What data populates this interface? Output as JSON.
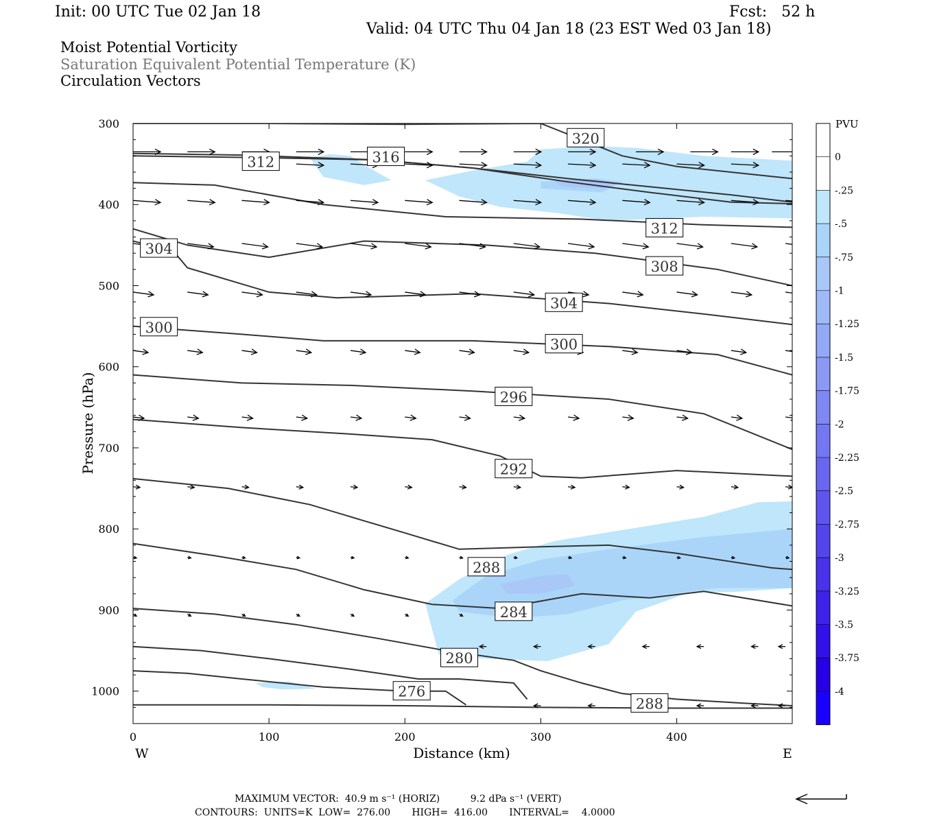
{
  "header": {
    "init": "Init: 00 UTC Tue 02 Jan 18",
    "fcst": "Fcst:   52 h",
    "valid": "Valid: 04 UTC Thu 04 Jan 18 (23 EST Wed 03 Jan 18)"
  },
  "legend_lines": {
    "line1": "Moist Potential Vorticity",
    "line2": "Saturation Equivalent Potential Temperature (K)",
    "line3": "Circulation Vectors"
  },
  "footer": {
    "max_vector": "MAXIMUM VECTOR:  40.9 m s⁻¹ (HORIZ)          9.2 dPa s⁻¹ (VERT)",
    "contours": "CONTOURS:  UNITS=K  LOW=  276.00       HIGH=  416.00       INTERVAL=    4.0000"
  },
  "colors": {
    "pv_light": "#bfe6fb",
    "pv_mid": "#a9c8f8",
    "pv_dark": "#93a9f5",
    "contour": "#333333"
  },
  "chart_data": {
    "type": "cross-section",
    "xlabel": "Distance (km)",
    "ylabel": "Pressure (hPa)",
    "xlim": [
      0,
      485
    ],
    "ylim": [
      1040,
      300
    ],
    "xticks": [
      0,
      100,
      200,
      300,
      400
    ],
    "yticks": [
      300,
      400,
      500,
      600,
      700,
      800,
      900,
      1000
    ],
    "x_endpoint_labels": [
      "W",
      "E"
    ],
    "colorbar": {
      "units": "PVU",
      "labels": [
        "0",
        "-.25",
        "-.5",
        "-.75",
        "-1",
        "-1.25",
        "-1.5",
        "-1.75",
        "-2",
        "-2.25",
        "-2.5",
        "-2.75",
        "-3",
        "-3.25",
        "-3.5",
        "-3.75",
        "-4"
      ],
      "colors": [
        "#ffffff",
        "#ffffff",
        "#bfe6fb",
        "#aad5f9",
        "#a9c8f8",
        "#9fbaf7",
        "#93a9f5",
        "#8a99f4",
        "#7f88f2",
        "#7477f1",
        "#6966ef",
        "#5e55ee",
        "#5344ec",
        "#4833eb",
        "#3d22e9",
        "#3211e8",
        "#2700e6",
        "#1a00ff"
      ]
    },
    "contours": [
      {
        "label": "320",
        "points": [
          [
            0,
            300
          ],
          [
            100,
            300
          ],
          [
            200,
            301
          ],
          [
            300,
            300
          ],
          [
            330,
            320
          ],
          [
            360,
            340
          ],
          [
            400,
            353
          ],
          [
            485,
            368
          ]
        ]
      },
      {
        "label": "316",
        "points": [
          [
            0,
            340
          ],
          [
            90,
            342
          ],
          [
            180,
            345
          ],
          [
            250,
            355
          ],
          [
            320,
            368
          ],
          [
            380,
            378
          ],
          [
            440,
            388
          ],
          [
            485,
            397
          ]
        ]
      },
      {
        "label": "312",
        "points": [
          [
            0,
            337
          ],
          [
            80,
            339
          ],
          [
            180,
            345
          ],
          [
            250,
            355
          ],
          [
            320,
            372
          ],
          [
            380,
            385
          ],
          [
            440,
            397
          ],
          [
            485,
            399
          ]
        ]
      },
      {
        "label": "312",
        "points": [
          [
            0,
            373
          ],
          [
            60,
            376
          ],
          [
            140,
            400
          ],
          [
            230,
            415
          ],
          [
            330,
            418
          ],
          [
            420,
            425
          ],
          [
            485,
            428
          ]
        ]
      },
      {
        "label": "308",
        "points": [
          [
            0,
            430
          ],
          [
            40,
            450
          ],
          [
            100,
            465
          ],
          [
            170,
            445
          ],
          [
            260,
            450
          ],
          [
            340,
            460
          ],
          [
            430,
            480
          ],
          [
            485,
            500
          ]
        ]
      },
      {
        "label": "304",
        "points": [
          [
            0,
            445
          ],
          [
            30,
            458
          ],
          [
            40,
            478
          ],
          [
            100,
            508
          ],
          [
            150,
            515
          ],
          [
            250,
            510
          ],
          [
            350,
            522
          ],
          [
            420,
            535
          ],
          [
            485,
            548
          ]
        ]
      },
      {
        "label": "300",
        "points": [
          [
            0,
            550
          ],
          [
            80,
            560
          ],
          [
            140,
            568
          ],
          [
            250,
            568
          ],
          [
            350,
            575
          ],
          [
            430,
            585
          ],
          [
            485,
            610
          ]
        ]
      },
      {
        "label": "296",
        "points": [
          [
            0,
            610
          ],
          [
            80,
            620
          ],
          [
            160,
            623
          ],
          [
            250,
            630
          ],
          [
            350,
            640
          ],
          [
            420,
            658
          ],
          [
            485,
            702
          ]
        ]
      },
      {
        "label": "292",
        "points": [
          [
            0,
            665
          ],
          [
            80,
            675
          ],
          [
            160,
            683
          ],
          [
            220,
            690
          ],
          [
            270,
            710
          ],
          [
            300,
            735
          ],
          [
            330,
            737
          ],
          [
            400,
            728
          ],
          [
            485,
            735
          ]
        ]
      },
      {
        "label": "288",
        "points": [
          [
            0,
            738
          ],
          [
            70,
            750
          ],
          [
            130,
            770
          ],
          [
            170,
            790
          ],
          [
            200,
            805
          ],
          [
            240,
            825
          ],
          [
            300,
            822
          ],
          [
            350,
            820
          ],
          [
            400,
            830
          ],
          [
            470,
            848
          ],
          [
            485,
            850
          ]
        ]
      },
      {
        "label": "288",
        "points": [
          [
            0,
            818
          ],
          [
            60,
            833
          ],
          [
            120,
            850
          ],
          [
            170,
            875
          ],
          [
            220,
            893
          ],
          [
            270,
            898
          ],
          [
            330,
            880
          ],
          [
            380,
            885
          ],
          [
            420,
            877
          ],
          [
            485,
            895
          ]
        ]
      },
      {
        "label": "284",
        "points": [
          [
            0,
            898
          ],
          [
            60,
            905
          ],
          [
            120,
            918
          ],
          [
            180,
            935
          ],
          [
            230,
            950
          ],
          [
            280,
            962
          ],
          [
            300,
            975
          ],
          [
            330,
            990
          ],
          [
            360,
            1003
          ],
          [
            400,
            1010
          ],
          [
            450,
            1015
          ],
          [
            485,
            1018
          ]
        ]
      },
      {
        "label": "280",
        "points": [
          [
            0,
            945
          ],
          [
            50,
            950
          ],
          [
            100,
            960
          ],
          [
            160,
            973
          ],
          [
            210,
            985
          ],
          [
            240,
            985
          ],
          [
            280,
            990
          ],
          [
            290,
            1010
          ]
        ]
      },
      {
        "label": "276",
        "points": [
          [
            0,
            975
          ],
          [
            40,
            978
          ],
          [
            80,
            985
          ],
          [
            140,
            995
          ],
          [
            200,
            1000
          ],
          [
            230,
            1000
          ],
          [
            245,
            1017
          ]
        ]
      },
      {
        "label": "288",
        "points": [
          [
            0,
            1017
          ],
          [
            100,
            1017
          ],
          [
            200,
            1018
          ],
          [
            300,
            1020
          ],
          [
            400,
            1021
          ],
          [
            485,
            1021
          ]
        ]
      }
    ],
    "contour_labels": [
      {
        "text": "320",
        "x": 333,
        "p": 318
      },
      {
        "text": "316",
        "x": 186,
        "p": 341
      },
      {
        "text": "312",
        "x": 94,
        "p": 347
      },
      {
        "text": "312",
        "x": 391,
        "p": 429
      },
      {
        "text": "308",
        "x": 391,
        "p": 476
      },
      {
        "text": "304",
        "x": 19,
        "p": 454
      },
      {
        "text": "304",
        "x": 317,
        "p": 521
      },
      {
        "text": "300",
        "x": 19,
        "p": 551
      },
      {
        "text": "300",
        "x": 317,
        "p": 572
      },
      {
        "text": "296",
        "x": 280,
        "p": 637
      },
      {
        "text": "292",
        "x": 280,
        "p": 726
      },
      {
        "text": "288",
        "x": 260,
        "p": 847
      },
      {
        "text": "284",
        "x": 280,
        "p": 902
      },
      {
        "text": "280",
        "x": 240,
        "p": 959
      },
      {
        "text": "276",
        "x": 205,
        "p": 1000
      },
      {
        "text": "288",
        "x": 380,
        "p": 1015
      }
    ],
    "pv_regions": [
      {
        "level": "-.25",
        "points": [
          [
            130,
            342
          ],
          [
            145,
            338
          ],
          [
            160,
            340
          ],
          [
            175,
            356
          ],
          [
            190,
            370
          ],
          [
            170,
            376
          ],
          [
            140,
            366
          ]
        ]
      },
      {
        "level": "-.25",
        "points": [
          [
            215,
            370
          ],
          [
            250,
            358
          ],
          [
            290,
            347
          ],
          [
            300,
            332
          ],
          [
            340,
            328
          ],
          [
            370,
            330
          ],
          [
            420,
            340
          ],
          [
            485,
            346
          ],
          [
            485,
            417
          ],
          [
            420,
            415
          ],
          [
            350,
            420
          ],
          [
            310,
            410
          ],
          [
            270,
            403
          ],
          [
            240,
            390
          ]
        ]
      },
      {
        "level": "-.5",
        "points": [
          [
            300,
            372
          ],
          [
            330,
            368
          ],
          [
            360,
            372
          ],
          [
            345,
            385
          ],
          [
            300,
            380
          ]
        ]
      },
      {
        "level": "-.75",
        "points": [
          [
            310,
            371
          ],
          [
            340,
            368
          ],
          [
            360,
            373
          ],
          [
            345,
            380
          ],
          [
            315,
            378
          ]
        ]
      },
      {
        "level": "-.25",
        "points": [
          [
            215,
            892
          ],
          [
            240,
            862
          ],
          [
            275,
            832
          ],
          [
            310,
            815
          ],
          [
            365,
            800
          ],
          [
            420,
            785
          ],
          [
            460,
            767
          ],
          [
            485,
            766
          ],
          [
            485,
            873
          ],
          [
            440,
            878
          ],
          [
            410,
            878
          ],
          [
            370,
            902
          ],
          [
            350,
            942
          ],
          [
            305,
            963
          ],
          [
            260,
            960
          ],
          [
            225,
            955
          ]
        ]
      },
      {
        "level": "-.5",
        "points": [
          [
            235,
            888
          ],
          [
            260,
            858
          ],
          [
            300,
            838
          ],
          [
            350,
            825
          ],
          [
            420,
            810
          ],
          [
            485,
            800
          ],
          [
            485,
            873
          ],
          [
            430,
            873
          ],
          [
            360,
            888
          ],
          [
            320,
            905
          ],
          [
            280,
            910
          ],
          [
            240,
            902
          ]
        ]
      },
      {
        "level": "-.75",
        "points": [
          [
            270,
            868
          ],
          [
            300,
            858
          ],
          [
            320,
            856
          ],
          [
            325,
            870
          ],
          [
            300,
            880
          ],
          [
            275,
            880
          ]
        ]
      },
      {
        "level": "-.25",
        "points": [
          [
            90,
            990
          ],
          [
            115,
            988
          ],
          [
            135,
            997
          ],
          [
            110,
            998
          ],
          [
            95,
            995
          ]
        ]
      }
    ],
    "vectors": [
      {
        "p": 335,
        "xs": [
          0,
          40,
          80,
          120,
          160,
          200,
          240,
          280,
          320,
          370,
          410,
          440,
          470
        ],
        "len": 40,
        "dy": 0
      },
      {
        "p": 350,
        "xs": [
          120,
          160,
          200,
          240,
          280,
          320,
          360,
          400,
          440
        ],
        "len": 40,
        "dy": 2
      },
      {
        "p": 395,
        "xs": [
          0,
          40,
          80,
          120,
          160,
          200,
          240,
          280,
          320,
          360,
          400,
          440,
          480
        ],
        "len": 40,
        "dy": 3
      },
      {
        "p": 448,
        "xs": [
          0,
          40,
          80,
          120,
          160,
          200,
          240,
          280,
          320,
          360,
          400,
          440,
          480
        ],
        "len": 38,
        "dy": 5
      },
      {
        "p": 508,
        "xs": [
          0,
          40,
          80,
          120,
          160,
          200,
          240,
          280,
          320,
          360,
          400,
          440,
          480
        ],
        "len": 30,
        "dy": 4
      },
      {
        "p": 580,
        "xs": [
          0,
          40,
          80,
          120,
          160,
          200,
          240,
          280,
          320,
          360,
          400,
          440,
          480
        ],
        "len": 22,
        "dy": 3
      },
      {
        "p": 662,
        "xs": [
          0,
          40,
          80,
          120,
          160,
          200,
          240,
          280,
          320,
          360,
          400,
          440,
          480
        ],
        "len": 16,
        "dy": 2
      },
      {
        "p": 748,
        "xs": [
          0,
          40,
          80,
          120,
          160,
          200,
          240,
          280,
          320,
          360,
          400,
          440,
          480
        ],
        "len": 10,
        "dy": 1
      },
      {
        "p": 835,
        "xs": [
          0,
          40,
          80,
          120,
          160,
          200,
          240,
          280,
          320,
          360,
          400,
          440,
          480
        ],
        "len": 5,
        "dy": 1
      },
      {
        "p": 905,
        "xs": [
          0,
          40,
          80,
          120,
          160,
          200,
          240,
          280
        ],
        "len": 5,
        "dy": 3
      },
      {
        "p": 945,
        "xs": [
          260,
          300,
          340,
          380,
          420,
          460,
          480
        ],
        "len": -10,
        "dy": 0
      },
      {
        "p": 1018,
        "xs": [
          300,
          340,
          380,
          420,
          460,
          480
        ],
        "len": -10,
        "dy": 0
      }
    ]
  }
}
